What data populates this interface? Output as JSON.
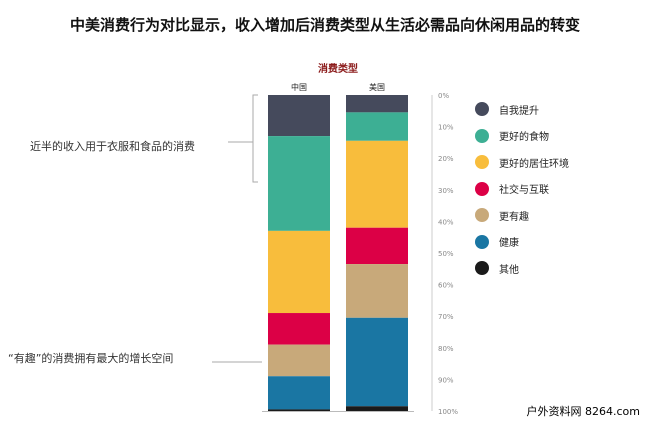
{
  "title": "中美消费行为对比显示，收入增加后消费类型从生活必需品向休闲用品的转变",
  "annotations": [
    "近半的收入用于衣服和食品的消费",
    "“有趣”的消费拥有最大的增长空间"
  ],
  "watermark": "户外资料网 8264.com",
  "chart_data": {
    "type": "bar",
    "stacked": true,
    "title": "消费类型",
    "categories": [
      "中国",
      "美国"
    ],
    "yticks": [
      "0%",
      "10%",
      "20%",
      "30%",
      "40%",
      "50%",
      "60%",
      "70%",
      "80%",
      "90%",
      "100%"
    ],
    "ylim": [
      0,
      100
    ],
    "legend_position": "right",
    "series": [
      {
        "name": "自我提升",
        "color": "#454a5c",
        "values": [
          13,
          5.5
        ]
      },
      {
        "name": "更好的食物",
        "color": "#3daf94",
        "values": [
          30,
          9
        ]
      },
      {
        "name": "更好的居住环境",
        "color": "#f8bd3c",
        "values": [
          26,
          27.5
        ]
      },
      {
        "name": "社交与互联",
        "color": "#dc0046",
        "values": [
          10,
          11.5
        ]
      },
      {
        "name": "更有趣",
        "color": "#c8a97a",
        "values": [
          10,
          17
        ]
      },
      {
        "name": "健康",
        "color": "#1a76a3",
        "values": [
          10.5,
          28
        ]
      },
      {
        "name": "其他",
        "color": "#1a1a1a",
        "values": [
          0.5,
          1.5
        ]
      }
    ]
  }
}
